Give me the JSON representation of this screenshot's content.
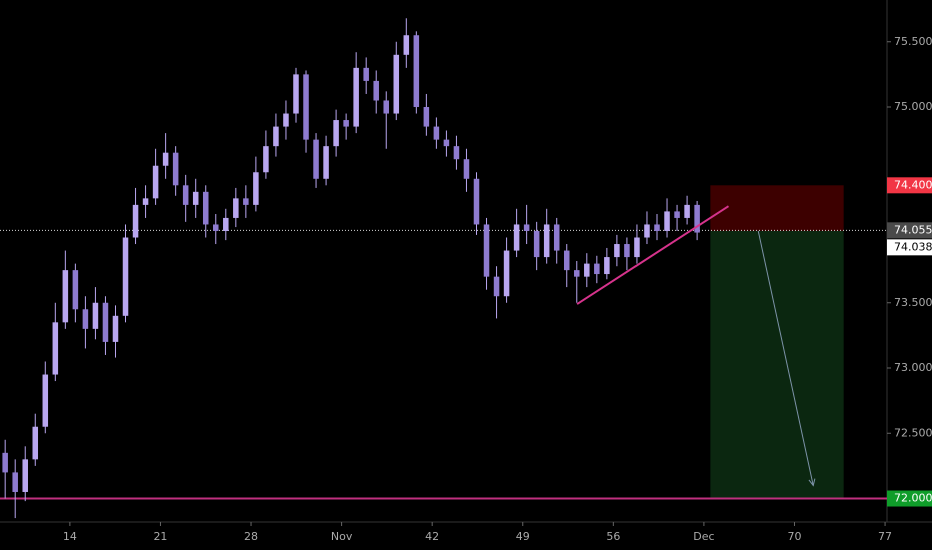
{
  "chart_data": {
    "type": "candlestick",
    "color": "#b9a7f0",
    "background": "#000000",
    "xlim": [
      8.6,
      77.15
    ],
    "ylim": [
      71.82,
      75.82
    ],
    "xticks": [
      14,
      21,
      28,
      {
        "value": 35,
        "label": "Nov"
      },
      42,
      49,
      56,
      {
        "value": 63,
        "label": "Dec"
      },
      70,
      77
    ],
    "yticks": [
      {
        "value": 72.5,
        "label": "72.500"
      },
      {
        "value": 73,
        "label": "73.000"
      },
      {
        "value": 73.5,
        "label": "73.500"
      },
      {
        "value": 75,
        "label": "75.000"
      },
      {
        "value": 75.5,
        "label": "75.500"
      }
    ],
    "x": [
      9,
      9.775,
      10.55,
      11.325,
      12.1,
      12.875,
      13.65,
      14.425,
      15.2,
      15.975,
      16.75,
      17.525,
      18.3,
      19.075,
      19.85,
      20.625,
      21.4,
      22.175,
      22.95,
      23.725,
      24.5,
      25.275,
      26.05,
      26.825,
      27.6,
      28.375,
      29.15,
      29.925,
      30.7,
      31.475,
      32.25,
      33.025,
      33.8,
      34.575,
      35.35,
      36.125,
      36.9,
      37.675,
      38.45,
      39.225,
      40,
      40.775,
      41.55,
      42.325,
      43.1,
      43.875,
      44.65,
      45.425,
      46.2,
      46.975,
      47.75,
      48.525,
      49.3,
      50.075,
      50.85,
      51.625,
      52.4,
      53.175,
      53.95,
      54.725,
      55.5,
      56.275,
      57.05,
      57.825,
      58.6,
      59.375,
      60.15,
      60.925,
      61.7,
      62.475
    ],
    "open": [
      72.35,
      72.2,
      72.05,
      72.3,
      72.55,
      72.95,
      73.35,
      73.75,
      73.45,
      73.3,
      73.5,
      73.2,
      73.4,
      74.0,
      74.25,
      74.3,
      74.55,
      74.65,
      74.4,
      74.25,
      74.35,
      74.1,
      74.05,
      74.15,
      74.3,
      74.25,
      74.5,
      74.7,
      74.85,
      74.95,
      75.25,
      74.75,
      74.45,
      74.7,
      74.9,
      74.85,
      75.3,
      75.2,
      75.05,
      74.95,
      75.4,
      75.55,
      75.0,
      74.85,
      74.75,
      74.7,
      74.6,
      74.45,
      74.1,
      73.7,
      73.55,
      73.9,
      74.1,
      74.05,
      73.85,
      74.1,
      73.9,
      73.75,
      73.7,
      73.8,
      73.72,
      73.85,
      73.95,
      73.85,
      74.0,
      74.1,
      74.05,
      74.2,
      74.15,
      74.25
    ],
    "high": [
      72.45,
      72.3,
      72.4,
      72.65,
      73.05,
      73.5,
      73.9,
      73.8,
      73.55,
      73.62,
      73.55,
      73.48,
      74.1,
      74.38,
      74.4,
      74.68,
      74.8,
      74.7,
      74.48,
      74.45,
      74.4,
      74.18,
      74.22,
      74.38,
      74.4,
      74.62,
      74.82,
      74.95,
      75.05,
      75.3,
      75.28,
      74.8,
      74.78,
      74.98,
      74.95,
      75.42,
      75.38,
      75.28,
      75.12,
      75.5,
      75.68,
      75.58,
      75.1,
      74.92,
      74.82,
      74.78,
      74.68,
      74.5,
      74.15,
      73.78,
      74.0,
      74.22,
      74.25,
      74.12,
      74.22,
      74.15,
      73.95,
      73.82,
      73.88,
      73.86,
      73.92,
      74.02,
      74.0,
      74.1,
      74.2,
      74.18,
      74.3,
      74.25,
      74.32,
      74.28
    ],
    "low": [
      72.0,
      71.85,
      71.98,
      72.25,
      72.5,
      72.9,
      73.3,
      73.35,
      73.15,
      73.22,
      73.1,
      73.08,
      73.35,
      73.95,
      74.15,
      74.25,
      74.45,
      74.32,
      74.12,
      74.15,
      74.0,
      73.95,
      73.98,
      74.08,
      74.15,
      74.2,
      74.45,
      74.62,
      74.75,
      74.88,
      74.65,
      74.38,
      74.4,
      74.62,
      74.75,
      74.8,
      75.1,
      74.95,
      74.68,
      74.9,
      75.3,
      74.95,
      74.78,
      74.68,
      74.62,
      74.52,
      74.35,
      74.02,
      73.6,
      73.38,
      73.5,
      73.85,
      73.95,
      73.75,
      73.8,
      73.8,
      73.62,
      73.5,
      73.62,
      73.65,
      73.68,
      73.78,
      73.75,
      73.8,
      73.95,
      73.98,
      74.0,
      74.05,
      74.1,
      73.98
    ],
    "close": [
      72.2,
      72.05,
      72.3,
      72.55,
      72.95,
      73.35,
      73.75,
      73.45,
      73.3,
      73.5,
      73.2,
      73.4,
      74.0,
      74.25,
      74.3,
      74.55,
      74.65,
      74.4,
      74.25,
      74.35,
      74.1,
      74.05,
      74.15,
      74.3,
      74.25,
      74.5,
      74.7,
      74.85,
      74.95,
      75.25,
      74.75,
      74.45,
      74.7,
      74.9,
      74.85,
      75.3,
      75.2,
      75.05,
      74.95,
      75.4,
      75.55,
      75.0,
      74.85,
      74.75,
      74.7,
      74.6,
      74.45,
      74.1,
      73.7,
      73.55,
      73.9,
      74.1,
      74.05,
      73.85,
      74.1,
      73.9,
      73.75,
      73.7,
      73.8,
      73.72,
      73.85,
      73.95,
      73.85,
      74.0,
      74.1,
      74.05,
      74.2,
      74.15,
      74.25,
      74.038
    ],
    "hlines": [
      {
        "value": 72,
        "color": "#c0307f"
      }
    ],
    "price_line": {
      "value": 74.055,
      "color": "#d8d8d8"
    },
    "position": {
      "x": [
        63.5,
        73.8
      ],
      "entry": 74.05,
      "stop": 74.4,
      "target": 72,
      "stop_color": "#3d0000",
      "target_color": "#0b2710"
    },
    "trendline": {
      "x": [
        53.2,
        64.9
      ],
      "y": [
        73.49,
        74.24
      ],
      "color": "#d6338c"
    },
    "arrow": {
      "x": [
        67.2,
        71.45
      ],
      "y": [
        74.05,
        72.1
      ],
      "color": "#7d93a8"
    },
    "price_labels": [
      {
        "value": 74.4,
        "label": "74.400",
        "color": "#f23645",
        "text_color": "#ffffff"
      },
      {
        "value": 74.055,
        "label": "74.055",
        "color": "#4a4a4a",
        "text_color": "#ffffff"
      },
      {
        "value": 74.038,
        "label": "74.038",
        "color": "#ffffff",
        "text_color": "#000000"
      },
      {
        "value": 72,
        "label": "72.000",
        "color": "#0f9d2a",
        "text_color": "#ffffff"
      }
    ]
  }
}
